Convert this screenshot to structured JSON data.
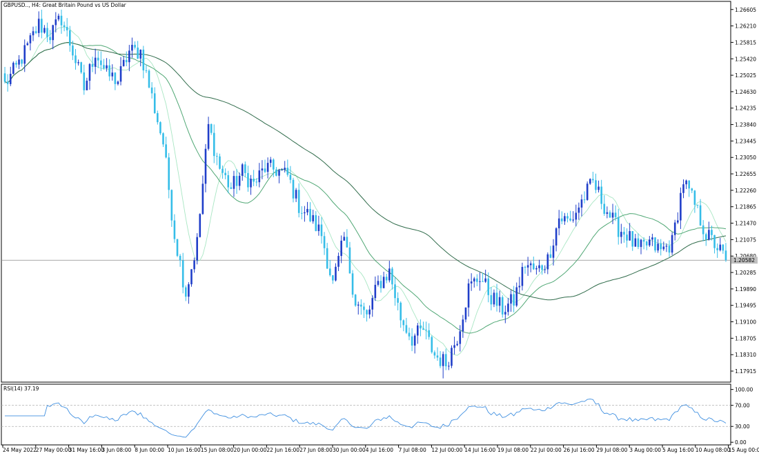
{
  "chart_data": [
    {
      "type": "candlestick",
      "title": "GBPUSD.., H4:  Great Britain Pound vs US Dollar",
      "ylim": [
        1.1765,
        1.268
      ],
      "y_ticks": [
        "1.26605",
        "1.26210",
        "1.25815",
        "1.25420",
        "1.25025",
        "1.24630",
        "1.24235",
        "1.23840",
        "1.23445",
        "1.23050",
        "1.22655",
        "1.22260",
        "1.21865",
        "1.21470",
        "1.21075",
        "1.20680",
        "1.20285",
        "1.19890",
        "1.19495",
        "1.19100",
        "1.18705",
        "1.18310",
        "1.17915"
      ],
      "x_ticks": [
        "24 May 2022",
        "27 May 00:00",
        "31 May 16:00",
        "3 Jun 08:00",
        "8 Jun 00:00",
        "10 Jun 16:00",
        "15 Jun 08:00",
        "20 Jun 00:00",
        "22 Jun 16:00",
        "27 Jun 08:00",
        "30 Jun 00:00",
        "4 Jul 16:00",
        "7 Jul 08:00",
        "12 Jul 00:00",
        "14 Jul 16:00",
        "19 Jul 08:00",
        "22 Jul 00:00",
        "26 Jul 16:00",
        "29 Jul 08:00",
        "3 Aug 00:00",
        "5 Aug 16:00",
        "10 Aug 08:00",
        "15 Aug 00:00"
      ],
      "current_price": 1.2058,
      "current_price_label": "1.20582",
      "close_path": [
        [
          0,
          1.248
        ],
        [
          4,
          1.252
        ],
        [
          8,
          1.257
        ],
        [
          12,
          1.2625
        ],
        [
          16,
          1.26
        ],
        [
          20,
          1.264
        ],
        [
          24,
          1.256
        ],
        [
          28,
          1.247
        ],
        [
          32,
          1.256
        ],
        [
          36,
          1.2505
        ],
        [
          40,
          1.249
        ],
        [
          44,
          1.256
        ],
        [
          48,
          1.256
        ],
        [
          52,
          1.245
        ],
        [
          56,
          1.234
        ],
        [
          60,
          1.212
        ],
        [
          64,
          1.198
        ],
        [
          68,
          1.21
        ],
        [
          72,
          1.238
        ],
        [
          76,
          1.228
        ],
        [
          80,
          1.223
        ],
        [
          84,
          1.227
        ],
        [
          88,
          1.224
        ],
        [
          92,
          1.228
        ],
        [
          96,
          1.2275
        ],
        [
          100,
          1.226
        ],
        [
          104,
          1.219
        ],
        [
          108,
          1.216
        ],
        [
          112,
          1.212
        ],
        [
          116,
          1.2
        ],
        [
          120,
          1.211
        ],
        [
          124,
          1.196
        ],
        [
          128,
          1.192
        ],
        [
          132,
          1.2
        ],
        [
          136,
          1.203
        ],
        [
          140,
          1.192
        ],
        [
          144,
          1.187
        ],
        [
          148,
          1.189
        ],
        [
          152,
          1.183
        ],
        [
          156,
          1.181
        ],
        [
          160,
          1.1875
        ],
        [
          164,
          1.199
        ],
        [
          168,
          1.202
        ],
        [
          172,
          1.197
        ],
        [
          176,
          1.194
        ],
        [
          180,
          1.196
        ],
        [
          184,
          1.205
        ],
        [
          188,
          1.203
        ],
        [
          192,
          1.206
        ],
        [
          196,
          1.216
        ],
        [
          200,
          1.215
        ],
        [
          204,
          1.22
        ],
        [
          208,
          1.2245
        ],
        [
          212,
          1.219
        ],
        [
          216,
          1.214
        ],
        [
          220,
          1.212
        ],
        [
          224,
          1.208
        ],
        [
          228,
          1.21
        ],
        [
          232,
          1.208
        ],
        [
          236,
          1.21
        ],
        [
          240,
          1.225
        ],
        [
          244,
          1.219
        ],
        [
          248,
          1.212
        ],
        [
          252,
          1.209
        ],
        [
          255,
          1.2058
        ]
      ],
      "extremes": {
        "high": 1.266,
        "high_bar": 13,
        "low": 1.1774,
        "low_bar": 155
      },
      "indicators": [
        "moving averages (3 lines)"
      ]
    },
    {
      "type": "line",
      "title": "RSI(14) 37.19",
      "ylim": [
        -5,
        110
      ],
      "y_ticks": [
        "100.00",
        "70.00",
        "30.00",
        "0.00"
      ],
      "levels": [
        70,
        30
      ]
    }
  ]
}
